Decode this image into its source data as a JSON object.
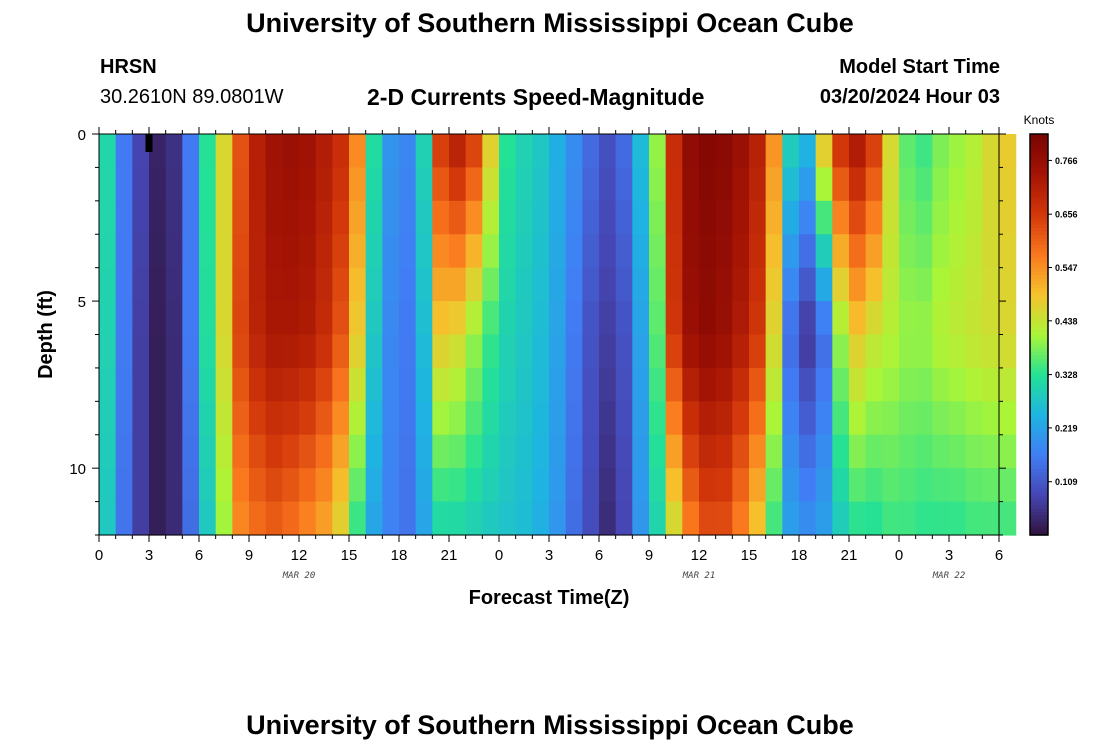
{
  "header": {
    "title": "University of Southern Mississippi Ocean Cube",
    "station": "HRSN",
    "coords": "30.2610N  89.0801W",
    "subtitle": "2-D Currents Speed-Magnitude",
    "model_start_label": "Model Start Time",
    "model_start_value": "03/20/2024 Hour 03"
  },
  "footer": {
    "title": "University of Southern Mississippi Ocean Cube"
  },
  "chart_data": {
    "type": "heatmap",
    "title": "2-D Currents Speed-Magnitude",
    "xlabel": "Forecast Time(Z)",
    "ylabel": "Depth (ft)",
    "x_range_hours": [
      0,
      54
    ],
    "y_range_ft": [
      0,
      12
    ],
    "xtick_labels": [
      "0",
      "3",
      "6",
      "9",
      "12",
      "15",
      "18",
      "21",
      "0",
      "3",
      "6",
      "9",
      "12",
      "15",
      "18",
      "21",
      "0",
      "3",
      "6"
    ],
    "ytick_labels": [
      "0",
      "5",
      "10"
    ],
    "date_labels": [
      "MAR 20",
      "MAR 21",
      "MAR 22"
    ],
    "date_label_hours": [
      12,
      36,
      51
    ],
    "model_start_marker_hour": 3,
    "colorbar": {
      "label": "Knots",
      "ticks": [
        "0.766",
        "0.656",
        "0.547",
        "0.438",
        "0.328",
        "0.219",
        "0.109"
      ],
      "min": 0.0,
      "max": 0.82
    },
    "depth_layers": 12,
    "hourly_speed_knots": {
      "description": "approx speed profile per forecast hour: [surface, mid(6ft), bottom(12ft)]",
      "profiles": [
        [
          0.31,
          0.3,
          0.28
        ],
        [
          0.16,
          0.16,
          0.15
        ],
        [
          0.08,
          0.07,
          0.07
        ],
        [
          0.03,
          0.02,
          0.02
        ],
        [
          0.05,
          0.04,
          0.04
        ],
        [
          0.16,
          0.16,
          0.14
        ],
        [
          0.33,
          0.32,
          0.28
        ],
        [
          0.46,
          0.46,
          0.4
        ],
        [
          0.62,
          0.64,
          0.55
        ],
        [
          0.71,
          0.7,
          0.58
        ],
        [
          0.75,
          0.73,
          0.6
        ],
        [
          0.76,
          0.73,
          0.58
        ],
        [
          0.75,
          0.72,
          0.55
        ],
        [
          0.72,
          0.68,
          0.52
        ],
        [
          0.68,
          0.62,
          0.46
        ],
        [
          0.56,
          0.48,
          0.33
        ],
        [
          0.32,
          0.28,
          0.22
        ],
        [
          0.2,
          0.18,
          0.17
        ],
        [
          0.18,
          0.16,
          0.15
        ],
        [
          0.3,
          0.26,
          0.22
        ],
        [
          0.66,
          0.48,
          0.3
        ],
        [
          0.72,
          0.46,
          0.3
        ],
        [
          0.66,
          0.4,
          0.29
        ],
        [
          0.48,
          0.34,
          0.28
        ],
        [
          0.33,
          0.3,
          0.27
        ],
        [
          0.3,
          0.28,
          0.26
        ],
        [
          0.28,
          0.26,
          0.24
        ],
        [
          0.24,
          0.22,
          0.2
        ],
        [
          0.19,
          0.16,
          0.14
        ],
        [
          0.14,
          0.1,
          0.09
        ],
        [
          0.1,
          0.07,
          0.04
        ],
        [
          0.14,
          0.1,
          0.08
        ],
        [
          0.26,
          0.22,
          0.2
        ],
        [
          0.4,
          0.36,
          0.3
        ],
        [
          0.68,
          0.66,
          0.44
        ],
        [
          0.78,
          0.76,
          0.56
        ],
        [
          0.8,
          0.78,
          0.62
        ],
        [
          0.79,
          0.76,
          0.62
        ],
        [
          0.76,
          0.72,
          0.56
        ],
        [
          0.71,
          0.66,
          0.48
        ],
        [
          0.55,
          0.46,
          0.34
        ],
        [
          0.3,
          0.14,
          0.22
        ],
        [
          0.26,
          0.06,
          0.2
        ],
        [
          0.5,
          0.14,
          0.22
        ],
        [
          0.68,
          0.4,
          0.28
        ],
        [
          0.74,
          0.48,
          0.32
        ],
        [
          0.66,
          0.44,
          0.32
        ],
        [
          0.46,
          0.42,
          0.34
        ],
        [
          0.36,
          0.4,
          0.34
        ],
        [
          0.34,
          0.4,
          0.33
        ],
        [
          0.38,
          0.42,
          0.33
        ],
        [
          0.4,
          0.43,
          0.33
        ],
        [
          0.42,
          0.44,
          0.34
        ],
        [
          0.46,
          0.45,
          0.34
        ],
        [
          0.48,
          0.46,
          0.34
        ]
      ]
    }
  }
}
